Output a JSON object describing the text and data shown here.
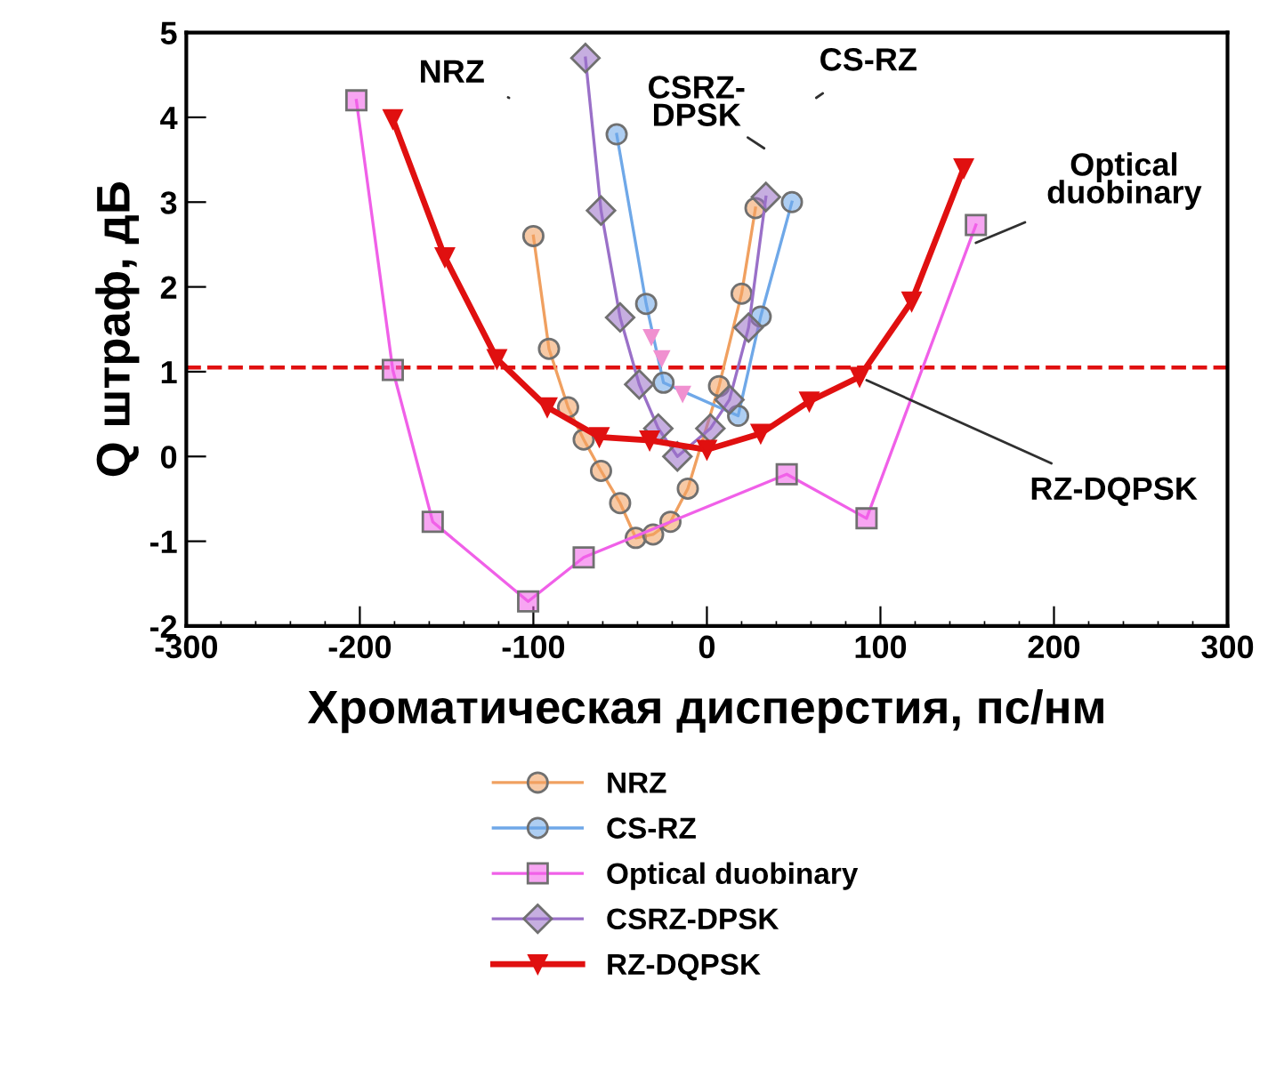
{
  "chart_data": {
    "type": "line",
    "xlabel": "Хроматическая дисперстия, пс/нм",
    "ylabel": "Q штраф, дБ",
    "xlim": [
      -300,
      300
    ],
    "xticks": [
      -300,
      -200,
      -100,
      0,
      100,
      200,
      300
    ],
    "ylim": [
      -2,
      5
    ],
    "yticks": [
      -2,
      -1,
      0,
      1,
      2,
      3,
      4,
      5
    ],
    "grid": false,
    "legend": "bottom",
    "series": [
      {
        "name": "NRZ",
        "color": "#f0a060",
        "marker": "circle",
        "x": [
          -100,
          -91,
          -80,
          -71,
          -61,
          -50,
          -41,
          -31,
          -21,
          -11,
          7,
          20,
          28
        ],
        "values": [
          2.6,
          1.27,
          0.58,
          0.2,
          -0.17,
          -0.55,
          -0.96,
          -0.92,
          -0.77,
          -0.38,
          0.83,
          1.92,
          2.93
        ]
      },
      {
        "name": "CS-RZ",
        "color": "#6fa8e8",
        "marker": "circle",
        "x": [
          -52,
          -35,
          -25,
          18,
          31,
          49
        ],
        "values": [
          3.8,
          1.8,
          0.87,
          0.48,
          1.65,
          3.0
        ]
      },
      {
        "name": "Optical duobinary",
        "color": "#f060e8",
        "marker": "square",
        "x": [
          -202,
          -181,
          -158,
          -103,
          -71,
          46,
          92,
          155
        ],
        "values": [
          4.2,
          1.02,
          -0.77,
          -1.71,
          -1.19,
          -0.21,
          -0.73,
          2.73
        ]
      },
      {
        "name": "CSRZ-DPSK",
        "color": "#9a70c8",
        "marker": "diamond",
        "x": [
          -70,
          -61,
          -50,
          -39,
          -28,
          -17,
          2,
          13,
          24,
          34
        ],
        "values": [
          4.7,
          2.9,
          1.64,
          0.85,
          0.33,
          0.0,
          0.33,
          0.67,
          1.52,
          3.06
        ]
      },
      {
        "name": "RZ-DQPSK",
        "color": "#e01010",
        "marker": "triangle",
        "x": [
          -181,
          -151,
          -121,
          -92,
          -62,
          -33,
          0,
          31,
          59,
          88,
          118,
          148
        ],
        "values": [
          3.98,
          2.35,
          1.15,
          0.58,
          0.23,
          0.19,
          0.08,
          0.27,
          0.65,
          0.94,
          1.83,
          3.4
        ]
      },
      {
        "type": "scatter",
        "color": "#f090d0",
        "marker": "triangle",
        "x": [
          -32,
          -26,
          -14
        ],
        "values": [
          1.4,
          1.15,
          0.73
        ]
      }
    ],
    "ref_lines": [
      {
        "axis": "y",
        "value": 1.05,
        "color": "#e01010",
        "line_style": "dashed"
      }
    ],
    "annotations": [
      "NRZ",
      "CSRZ-\nDPSK",
      "CS-RZ",
      {
        "text": "Optical\nduobinary",
        "x": 155,
        "y": 2.52
      },
      {
        "text": "RZ-DQPSK",
        "x": 92,
        "y": 0.9
      }
    ]
  }
}
